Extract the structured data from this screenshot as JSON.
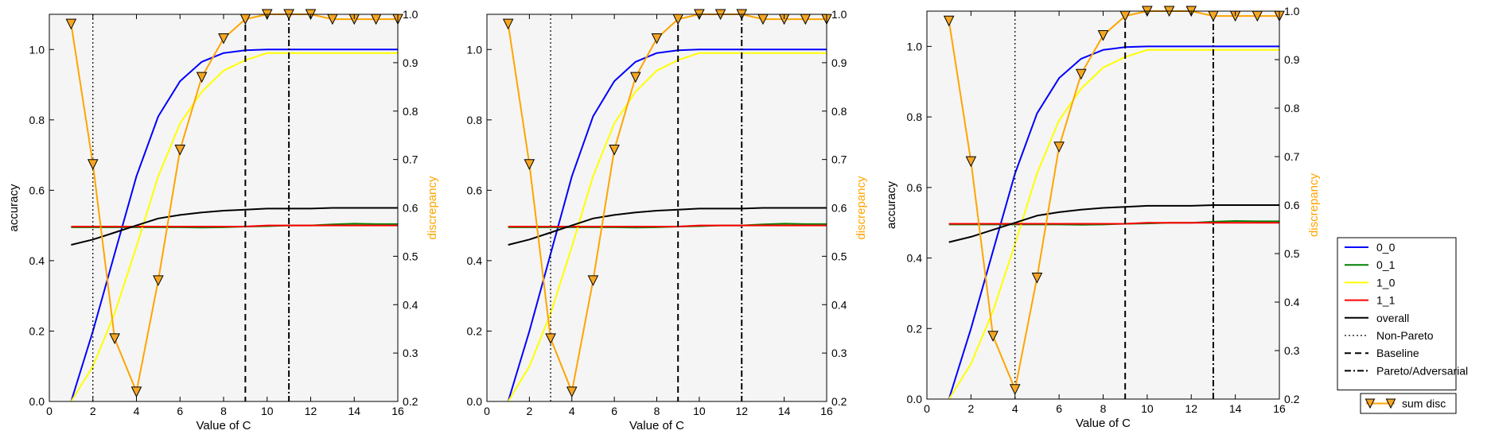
{
  "chart_data": [
    {
      "type": "line",
      "xlabel": "Value of C",
      "ylabel": "accuracy",
      "ylabel_right": "discrepancy",
      "xlim": [
        0,
        16
      ],
      "ylim": [
        0.0,
        1.1
      ],
      "ylim_right": [
        0.2,
        1.0
      ],
      "xticks": [
        "0",
        "2",
        "4",
        "6",
        "8",
        "10",
        "12",
        "14",
        "16"
      ],
      "yticks": [
        "0.0",
        "0.2",
        "0.4",
        "0.6",
        "0.8",
        "1.0"
      ],
      "yticks_right": [
        "0.2",
        "0.3",
        "0.4",
        "0.5",
        "0.6",
        "0.7",
        "0.8",
        "0.9",
        "1.0"
      ],
      "x": [
        1,
        2,
        3,
        4,
        5,
        6,
        7,
        8,
        9,
        10,
        11,
        12,
        13,
        14,
        15,
        16
      ],
      "series": [
        {
          "name": "0_0",
          "color": "#0000ff",
          "values": [
            0.0,
            0.2,
            0.42,
            0.64,
            0.81,
            0.91,
            0.965,
            0.99,
            0.998,
            1.0,
            1.0,
            1.0,
            1.0,
            1.0,
            1.0,
            1.0
          ]
        },
        {
          "name": "0_1",
          "color": "#008000",
          "values": [
            0.495,
            0.495,
            0.495,
            0.495,
            0.495,
            0.495,
            0.494,
            0.495,
            0.497,
            0.498,
            0.5,
            0.5,
            0.503,
            0.505,
            0.504,
            0.504
          ]
        },
        {
          "name": "1_0",
          "color": "#ffff00",
          "values": [
            0.0,
            0.1,
            0.25,
            0.44,
            0.64,
            0.79,
            0.88,
            0.94,
            0.97,
            0.99,
            0.99,
            0.99,
            0.99,
            0.99,
            0.99,
            0.99
          ]
        },
        {
          "name": "1_1",
          "color": "#ff0000",
          "values": [
            0.497,
            0.497,
            0.497,
            0.497,
            0.497,
            0.497,
            0.497,
            0.497,
            0.497,
            0.5,
            0.5,
            0.5,
            0.5,
            0.5,
            0.5,
            0.5
          ]
        },
        {
          "name": "overall",
          "color": "#000000",
          "values": [
            0.445,
            0.46,
            0.48,
            0.5,
            0.52,
            0.53,
            0.537,
            0.542,
            0.545,
            0.548,
            0.548,
            0.548,
            0.55,
            0.55,
            0.55,
            0.55
          ]
        }
      ],
      "secondary_series": [
        {
          "name": "sum disc",
          "color": "#ffa500",
          "marker": "triangle-down",
          "values": [
            0.98,
            0.69,
            0.33,
            0.22,
            0.45,
            0.72,
            0.87,
            0.95,
            0.99,
            1.0,
            1.0,
            1.0,
            0.99,
            0.99,
            0.99,
            0.99
          ]
        }
      ],
      "vlines": [
        {
          "name": "Non-Pareto",
          "x": 2,
          "style": "dotted"
        },
        {
          "name": "Baseline",
          "x": 9,
          "style": "dashed"
        },
        {
          "name": "Pareto/Adversarial",
          "x": 11,
          "style": "dashdot"
        }
      ]
    },
    {
      "type": "line",
      "xlabel": "Value of C",
      "ylabel": "",
      "ylabel_right": "discrepancy",
      "xlim": [
        0,
        16
      ],
      "ylim": [
        0.0,
        1.1
      ],
      "ylim_right": [
        0.2,
        1.0
      ],
      "xticks": [
        "0",
        "2",
        "4",
        "6",
        "8",
        "10",
        "12",
        "14",
        "16"
      ],
      "yticks": [
        "0.0",
        "0.2",
        "0.4",
        "0.6",
        "0.8",
        "1.0"
      ],
      "yticks_right": [
        "0.2",
        "0.3",
        "0.4",
        "0.5",
        "0.6",
        "0.7",
        "0.8",
        "0.9",
        "1.0"
      ],
      "x": [
        1,
        2,
        3,
        4,
        5,
        6,
        7,
        8,
        9,
        10,
        11,
        12,
        13,
        14,
        15,
        16
      ],
      "series": [
        {
          "name": "0_0",
          "color": "#0000ff",
          "values": [
            0.0,
            0.2,
            0.42,
            0.64,
            0.81,
            0.91,
            0.965,
            0.99,
            0.998,
            1.0,
            1.0,
            1.0,
            1.0,
            1.0,
            1.0,
            1.0
          ]
        },
        {
          "name": "0_1",
          "color": "#008000",
          "values": [
            0.495,
            0.495,
            0.495,
            0.495,
            0.495,
            0.495,
            0.494,
            0.495,
            0.497,
            0.498,
            0.5,
            0.5,
            0.503,
            0.505,
            0.504,
            0.504
          ]
        },
        {
          "name": "1_0",
          "color": "#ffff00",
          "values": [
            0.0,
            0.1,
            0.25,
            0.44,
            0.64,
            0.79,
            0.88,
            0.94,
            0.97,
            0.99,
            0.99,
            0.99,
            0.99,
            0.99,
            0.99,
            0.99
          ]
        },
        {
          "name": "1_1",
          "color": "#ff0000",
          "values": [
            0.497,
            0.497,
            0.497,
            0.497,
            0.497,
            0.497,
            0.497,
            0.497,
            0.497,
            0.5,
            0.5,
            0.5,
            0.5,
            0.5,
            0.5,
            0.5
          ]
        },
        {
          "name": "overall",
          "color": "#000000",
          "values": [
            0.445,
            0.46,
            0.48,
            0.5,
            0.52,
            0.53,
            0.537,
            0.542,
            0.545,
            0.548,
            0.548,
            0.548,
            0.55,
            0.55,
            0.55,
            0.55
          ]
        }
      ],
      "secondary_series": [
        {
          "name": "sum disc",
          "color": "#ffa500",
          "marker": "triangle-down",
          "values": [
            0.98,
            0.69,
            0.33,
            0.22,
            0.45,
            0.72,
            0.87,
            0.95,
            0.99,
            1.0,
            1.0,
            1.0,
            0.99,
            0.99,
            0.99,
            0.99
          ]
        }
      ],
      "vlines": [
        {
          "name": "Non-Pareto",
          "x": 3,
          "style": "dotted"
        },
        {
          "name": "Baseline",
          "x": 9,
          "style": "dashed"
        },
        {
          "name": "Pareto/Adversarial",
          "x": 12,
          "style": "dashdot"
        }
      ]
    },
    {
      "type": "line",
      "xlabel": "Value of C",
      "ylabel": "accuracy",
      "ylabel_right": "discrepancy",
      "xlim": [
        0,
        16
      ],
      "ylim": [
        0.0,
        1.1
      ],
      "ylim_right": [
        0.2,
        1.0
      ],
      "xticks": [
        "0",
        "2",
        "4",
        "6",
        "8",
        "10",
        "12",
        "14",
        "16"
      ],
      "yticks": [
        "0.0",
        "0.2",
        "0.4",
        "0.6",
        "0.8",
        "1.0"
      ],
      "yticks_right": [
        "0.2",
        "0.3",
        "0.4",
        "0.5",
        "0.6",
        "0.7",
        "0.8",
        "0.9",
        "1.0"
      ],
      "x": [
        1,
        2,
        3,
        4,
        5,
        6,
        7,
        8,
        9,
        10,
        11,
        12,
        13,
        14,
        15,
        16
      ],
      "series": [
        {
          "name": "0_0",
          "color": "#0000ff",
          "values": [
            0.0,
            0.2,
            0.42,
            0.64,
            0.81,
            0.91,
            0.965,
            0.99,
            0.998,
            1.0,
            1.0,
            1.0,
            1.0,
            1.0,
            1.0,
            1.0
          ]
        },
        {
          "name": "0_1",
          "color": "#008000",
          "values": [
            0.495,
            0.495,
            0.495,
            0.495,
            0.495,
            0.495,
            0.494,
            0.495,
            0.497,
            0.498,
            0.5,
            0.5,
            0.503,
            0.505,
            0.504,
            0.504
          ]
        },
        {
          "name": "1_0",
          "color": "#ffff00",
          "values": [
            0.0,
            0.1,
            0.25,
            0.44,
            0.64,
            0.79,
            0.88,
            0.94,
            0.97,
            0.99,
            0.99,
            0.99,
            0.99,
            0.99,
            0.99,
            0.99
          ]
        },
        {
          "name": "1_1",
          "color": "#ff0000",
          "values": [
            0.497,
            0.497,
            0.497,
            0.497,
            0.497,
            0.497,
            0.497,
            0.497,
            0.497,
            0.5,
            0.5,
            0.5,
            0.5,
            0.5,
            0.5,
            0.5
          ]
        },
        {
          "name": "overall",
          "color": "#000000",
          "values": [
            0.445,
            0.46,
            0.48,
            0.5,
            0.52,
            0.53,
            0.537,
            0.542,
            0.545,
            0.548,
            0.548,
            0.548,
            0.55,
            0.55,
            0.55,
            0.55
          ]
        }
      ],
      "secondary_series": [
        {
          "name": "sum disc",
          "color": "#ffa500",
          "marker": "triangle-down",
          "values": [
            0.98,
            0.69,
            0.33,
            0.22,
            0.45,
            0.72,
            0.87,
            0.95,
            0.99,
            1.0,
            1.0,
            1.0,
            0.99,
            0.99,
            0.99,
            0.99
          ]
        }
      ],
      "vlines": [
        {
          "name": "Non-Pareto",
          "x": 4,
          "style": "dotted"
        },
        {
          "name": "Baseline",
          "x": 9,
          "style": "dashed"
        },
        {
          "name": "Pareto/Adversarial",
          "x": 13,
          "style": "dashdot"
        }
      ]
    }
  ],
  "legend": {
    "placement": "right",
    "entries": [
      {
        "label": "0_0",
        "color": "#0000ff",
        "style": "solid"
      },
      {
        "label": "0_1",
        "color": "#008000",
        "style": "solid"
      },
      {
        "label": "1_0",
        "color": "#ffff00",
        "style": "solid"
      },
      {
        "label": "1_1",
        "color": "#ff0000",
        "style": "solid"
      },
      {
        "label": "overall",
        "color": "#000000",
        "style": "solid"
      },
      {
        "label": "Non-Pareto",
        "color": "#000000",
        "style": "dotted"
      },
      {
        "label": "Baseline",
        "color": "#000000",
        "style": "dashed"
      },
      {
        "label": "Pareto/Adversarial",
        "color": "#000000",
        "style": "dashdot"
      }
    ],
    "secondary_entries": [
      {
        "label": "sum disc",
        "color": "#ffa500",
        "style": "solid",
        "marker": "triangle-down"
      }
    ]
  },
  "colors": {
    "plot_background": "#f5f5f5",
    "discrepancy_axis": "#ffa500",
    "marker_fill": "#f5a623"
  }
}
